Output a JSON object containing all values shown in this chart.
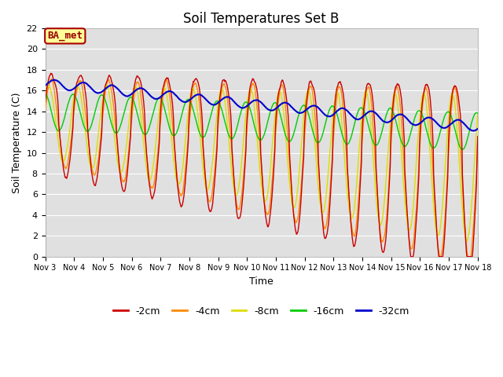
{
  "title": "Soil Temperatures Set B",
  "xlabel": "Time",
  "ylabel": "Soil Temperature (C)",
  "ylim": [
    0,
    22
  ],
  "yticks": [
    0,
    2,
    4,
    6,
    8,
    10,
    12,
    14,
    16,
    18,
    20,
    22
  ],
  "xtick_labels": [
    "Nov 3",
    "Nov 4",
    "Nov 5",
    "Nov 6",
    "Nov 7",
    "Nov 8",
    "Nov 9",
    "Nov 10",
    "Nov 11",
    "Nov 12",
    "Nov 13",
    "Nov 14",
    "Nov 15",
    "Nov 16",
    "Nov 17",
    "Nov 18"
  ],
  "annotation_text": "BA_met",
  "annotation_bg": "#ffff99",
  "annotation_border": "#aa0000",
  "colors": {
    "-2cm": "#cc0000",
    "-4cm": "#ff8800",
    "-8cm": "#dddd00",
    "-16cm": "#00cc00",
    "-32cm": "#0000cc"
  },
  "fig_bg": "#ffffff",
  "plot_bg": "#e0e0e0",
  "grid_color": "#ffffff",
  "title_fontsize": 12,
  "axis_fontsize": 9,
  "tick_fontsize": 8
}
